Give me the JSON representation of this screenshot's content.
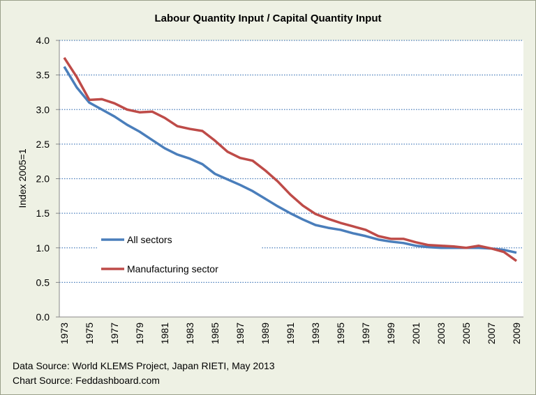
{
  "chart_data": {
    "type": "line",
    "title": "Labour Quantity Input / Capital Quantity Input",
    "xlabel": "",
    "ylabel": "Index 2005=1",
    "ylim": [
      0,
      4
    ],
    "yticks": [
      "0.0",
      "0.5",
      "1.0",
      "1.5",
      "2.0",
      "2.5",
      "3.0",
      "3.5",
      "4.0"
    ],
    "x": [
      1973,
      1974,
      1975,
      1976,
      1977,
      1978,
      1979,
      1980,
      1981,
      1982,
      1983,
      1984,
      1985,
      1986,
      1987,
      1988,
      1989,
      1990,
      1991,
      1992,
      1993,
      1994,
      1995,
      1996,
      1997,
      1998,
      1999,
      2000,
      2001,
      2002,
      2003,
      2004,
      2005,
      2006,
      2007,
      2008,
      2009
    ],
    "xticks": [
      "1973",
      "1975",
      "1977",
      "1979",
      "1981",
      "1983",
      "1985",
      "1987",
      "1989",
      "1991",
      "1993",
      "1995",
      "1997",
      "1999",
      "2001",
      "2003",
      "2005",
      "2007",
      "2009"
    ],
    "grid": true,
    "legend_position": "center-left",
    "series": [
      {
        "name": "All sectors",
        "color": "#4a7ebb",
        "values": [
          3.62,
          3.32,
          3.1,
          3.0,
          2.9,
          2.78,
          2.68,
          2.56,
          2.44,
          2.35,
          2.29,
          2.21,
          2.07,
          1.99,
          1.91,
          1.82,
          1.71,
          1.6,
          1.5,
          1.41,
          1.33,
          1.29,
          1.26,
          1.21,
          1.17,
          1.12,
          1.09,
          1.07,
          1.03,
          1.01,
          1.0,
          1.0,
          1.0,
          1.0,
          0.99,
          0.97,
          0.93
        ]
      },
      {
        "name": "Manufacturing sector",
        "color": "#be4b48",
        "values": [
          3.75,
          3.47,
          3.14,
          3.15,
          3.09,
          3.0,
          2.96,
          2.97,
          2.88,
          2.76,
          2.72,
          2.69,
          2.55,
          2.39,
          2.3,
          2.26,
          2.12,
          1.96,
          1.77,
          1.61,
          1.49,
          1.42,
          1.36,
          1.31,
          1.26,
          1.17,
          1.13,
          1.13,
          1.08,
          1.04,
          1.03,
          1.02,
          1.0,
          1.03,
          0.99,
          0.94,
          0.81
        ]
      }
    ]
  },
  "footer": {
    "data_source": "Data Source: World KLEMS Project, Japan RIETI, May 2013",
    "chart_source": "Chart Source: Feddashboard.com"
  }
}
